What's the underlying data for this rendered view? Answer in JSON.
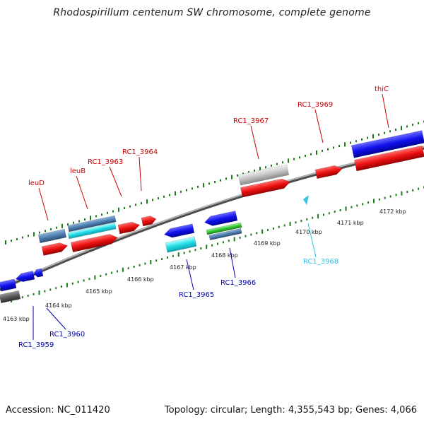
{
  "title": "Rhodospirillum centenum SW chromosome, complete genome",
  "footer": {
    "accession": "Accession: NC_011420",
    "summary": "Topology: circular; Length: 4,355,543 bp; Genes: 4,066"
  },
  "colors": {
    "forward_label": "#cc0000",
    "reverse_label": "#0000b3",
    "rna_label": "#33c4e6",
    "backbone": "#808080",
    "tick": "#1a7a1a"
  },
  "scale": {
    "tick_labels": [
      "4163 kbp",
      "4164 kbp",
      "4165 kbp",
      "4166 kbp",
      "4167 kbp",
      "4168 kbp",
      "4169 kbp",
      "4170 kbp",
      "4171 kbp",
      "4172 kbp"
    ]
  },
  "genes": [
    {
      "name": "leuD",
      "strand": "+",
      "color": "#cc0000"
    },
    {
      "name": "leuB",
      "strand": "+",
      "color": "#cc0000"
    },
    {
      "name": "RC1_3963",
      "strand": "+",
      "color": "#cc0000"
    },
    {
      "name": "RC1_3964",
      "strand": "+",
      "color": "#cc0000"
    },
    {
      "name": "RC1_3967",
      "strand": "+",
      "color": "#cc0000"
    },
    {
      "name": "RC1_3969",
      "strand": "+",
      "color": "#cc0000"
    },
    {
      "name": "thiC",
      "strand": "+",
      "color": "#cc0000"
    },
    {
      "name": "RC1_3968",
      "strand": "-",
      "color": "#33c4e6"
    },
    {
      "name": "RC1_3965",
      "strand": "-",
      "color": "#0000b3"
    },
    {
      "name": "RC1_3966",
      "strand": "-",
      "color": "#0000b3"
    },
    {
      "name": "RC1_3959",
      "strand": "-",
      "color": "#0000b3"
    },
    {
      "name": "RC1_3960",
      "strand": "-",
      "color": "#0000b3"
    }
  ]
}
